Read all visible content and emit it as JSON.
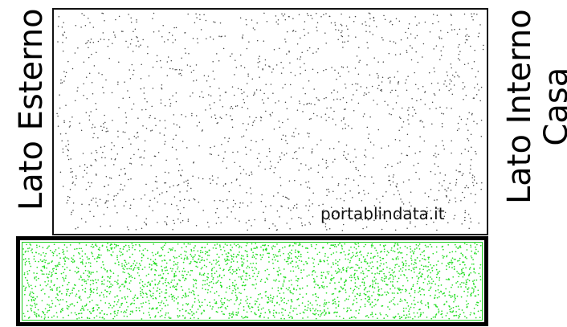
{
  "labels": {
    "left": "Lato Esterno",
    "right_line1": "Lato Interno",
    "right_line2": "Casa"
  },
  "watermark": "portablindata.it",
  "colors": {
    "top_panel_dots": "#444444",
    "bottom_panel_dots": "#22dd22",
    "bottom_panel_border": "#000000",
    "top_panel_border": "#111111"
  }
}
